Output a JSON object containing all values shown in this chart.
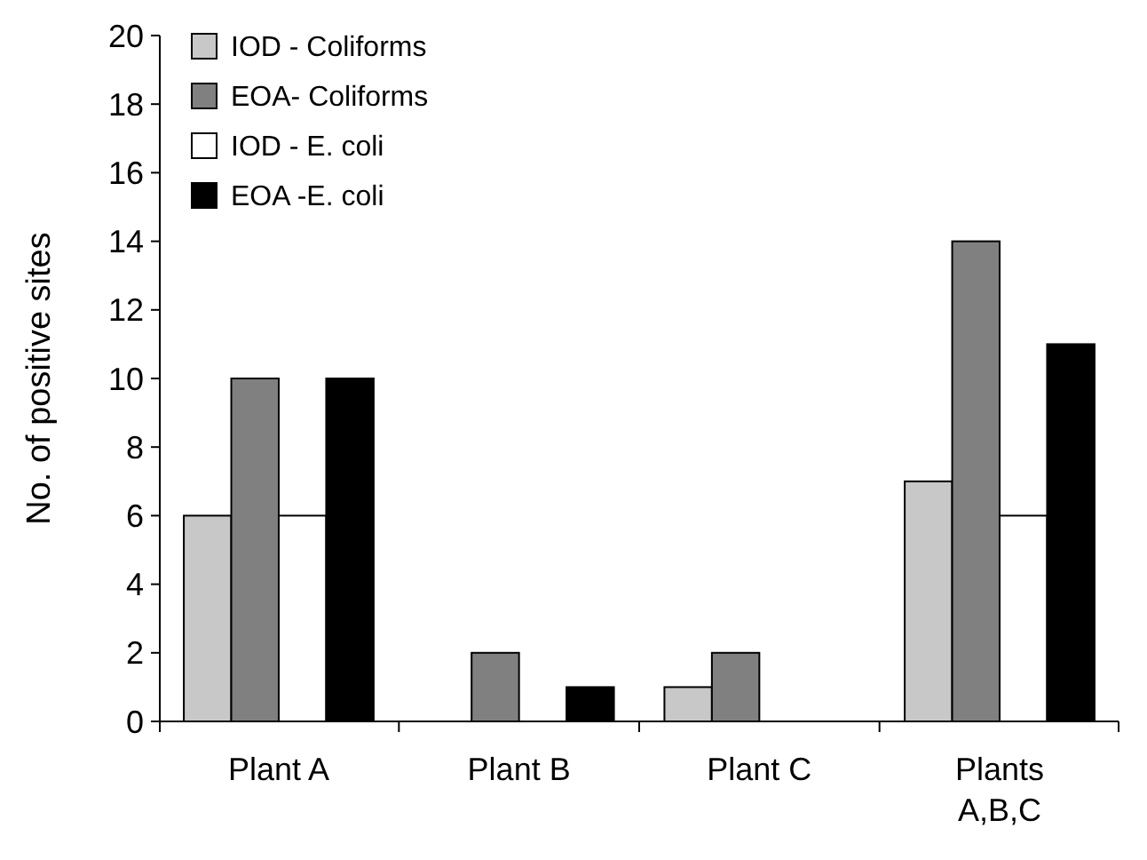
{
  "chart_data": {
    "type": "bar",
    "ylabel": "No. of positive sites",
    "categories": [
      "Plant A",
      "Plant B",
      "Plant C",
      "Plants A,B,C"
    ],
    "series": [
      {
        "name": "IOD - Coliforms",
        "color": "#c8c8c8",
        "values": [
          6,
          0,
          1,
          7
        ]
      },
      {
        "name": "EOA- Coliforms",
        "color": "#808080",
        "values": [
          10,
          2,
          2,
          14
        ]
      },
      {
        "name": "IOD - E. coli",
        "color": "#ffffff",
        "values": [
          6,
          0,
          0,
          6
        ]
      },
      {
        "name": "EOA -E. coli",
        "color": "#000000",
        "values": [
          10,
          1,
          0,
          11
        ]
      }
    ],
    "ylim": [
      0,
      20
    ],
    "yticks": [
      0,
      2,
      4,
      6,
      8,
      10,
      12,
      14,
      16,
      18,
      20
    ],
    "grid": false,
    "legend": "top left"
  }
}
